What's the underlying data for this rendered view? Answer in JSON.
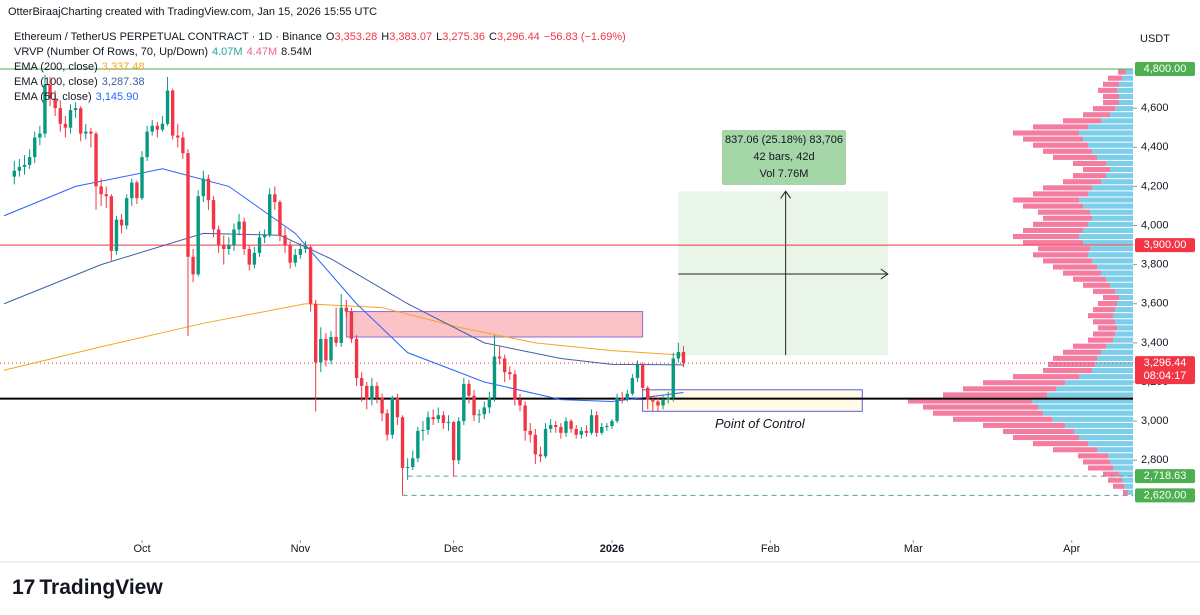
{
  "chart_data": {
    "type": "candlestick",
    "header": "OtterBiraajCharting created with TradingView.com, Jan 15, 2026 15:55 UTC",
    "title": "Ethereum / TetherUS PERPETUAL CONTRACT · 1D · Binance",
    "ohlc_legend": [
      {
        "key": "O",
        "value": "3,353.28"
      },
      {
        "key": "H",
        "value": "3,383.07"
      },
      {
        "key": "L",
        "value": "3,275.36"
      },
      {
        "key": "C",
        "value": "3,296.44"
      }
    ],
    "change": "−56.83 (−1.69%)",
    "vrvp": {
      "name": "VRVP (Number Of Rows, 70, Up/Down)",
      "up": "4.07M",
      "down": "4.47M",
      "total": "8.54M"
    },
    "currency": "USDT",
    "logo": "TradingView",
    "ylim": [
      2392,
      4923
    ],
    "xlim": [
      -119.8,
      102
    ],
    "yticks": [
      {
        "value": 2800,
        "label": "2,800"
      },
      {
        "value": 3000,
        "label": "3,000"
      },
      {
        "value": 3200,
        "label": "3,200"
      },
      {
        "value": 3400,
        "label": "3,400"
      },
      {
        "value": 3600,
        "label": "3,600"
      },
      {
        "value": 3800,
        "label": "3,800"
      },
      {
        "value": 4000,
        "label": "4,000"
      },
      {
        "value": 4200,
        "label": "4,200"
      },
      {
        "value": 4400,
        "label": "4,400"
      },
      {
        "value": 4600,
        "label": "4,600"
      }
    ],
    "xticks": [
      {
        "value": -92,
        "label": "Oct"
      },
      {
        "value": -61,
        "label": "Nov"
      },
      {
        "value": -31,
        "label": "Dec"
      },
      {
        "value": 0,
        "label": "2026"
      },
      {
        "value": 31,
        "label": "Feb"
      },
      {
        "value": 59,
        "label": "Mar"
      },
      {
        "value": 90,
        "label": "Apr"
      }
    ],
    "up_color": "#089981",
    "down_color": "#f23645",
    "x": [
      -117,
      -116,
      -115,
      -114,
      -113,
      -112,
      -111,
      -110,
      -109,
      -108,
      -107,
      -106,
      -105,
      -104,
      -103,
      -102,
      -101,
      -100,
      -99,
      -98,
      -97,
      -96,
      -95,
      -94,
      -93,
      -92,
      -91,
      -90,
      -89,
      -88,
      -87,
      -86,
      -85,
      -84,
      -83,
      -82,
      -81,
      -80,
      -79,
      -78,
      -77,
      -76,
      -75,
      -74,
      -73,
      -72,
      -71,
      -70,
      -69,
      -68,
      -67,
      -66,
      -65,
      -64,
      -63,
      -62,
      -61,
      -60,
      -59,
      -58,
      -57,
      -56,
      -55,
      -54,
      -53,
      -52,
      -51,
      -50,
      -49,
      -48,
      -47,
      -46,
      -45,
      -44,
      -43,
      -42,
      -41,
      -40,
      -39,
      -38,
      -37,
      -36,
      -35,
      -34,
      -33,
      -32,
      -31,
      -30,
      -29,
      -28,
      -27,
      -26,
      -25,
      -24,
      -23,
      -22,
      -21,
      -20,
      -19,
      -18,
      -17,
      -16,
      -15,
      -14,
      -13,
      -12,
      -11,
      -10,
      -9,
      -8,
      -7,
      -6,
      -5,
      -4,
      -3,
      -2,
      -1,
      0,
      1,
      2,
      3,
      4,
      5,
      6,
      7,
      8,
      9,
      10,
      11,
      12,
      13,
      14
    ],
    "candles": [
      [
        4250,
        4330,
        4210,
        4280
      ],
      [
        4280,
        4340,
        4250,
        4300
      ],
      [
        4300,
        4360,
        4260,
        4310
      ],
      [
        4310,
        4390,
        4290,
        4350
      ],
      [
        4350,
        4480,
        4320,
        4450
      ],
      [
        4450,
        4510,
        4410,
        4470
      ],
      [
        4470,
        4770,
        4450,
        4720
      ],
      [
        4720,
        4760,
        4610,
        4650
      ],
      [
        4650,
        4690,
        4560,
        4600
      ],
      [
        4600,
        4640,
        4480,
        4520
      ],
      [
        4520,
        4560,
        4450,
        4500
      ],
      [
        4500,
        4620,
        4470,
        4590
      ],
      [
        4590,
        4630,
        4550,
        4600
      ],
      [
        4600,
        4610,
        4430,
        4470
      ],
      [
        4470,
        4520,
        4440,
        4480
      ],
      [
        4480,
        4500,
        4400,
        4470
      ],
      [
        4470,
        4480,
        4080,
        4200
      ],
      [
        4200,
        4240,
        4100,
        4160
      ],
      [
        4160,
        4200,
        4090,
        4150
      ],
      [
        4150,
        4160,
        3820,
        3870
      ],
      [
        3870,
        4050,
        3850,
        4030
      ],
      [
        4030,
        4060,
        3960,
        4000
      ],
      [
        4000,
        4160,
        3980,
        4140
      ],
      [
        4140,
        4240,
        4100,
        4220
      ],
      [
        4220,
        4230,
        4110,
        4140
      ],
      [
        4140,
        4380,
        4130,
        4350
      ],
      [
        4350,
        4510,
        4330,
        4480
      ],
      [
        4480,
        4540,
        4460,
        4510
      ],
      [
        4510,
        4530,
        4450,
        4490
      ],
      [
        4490,
        4560,
        4480,
        4520
      ],
      [
        4520,
        4760,
        4510,
        4690
      ],
      [
        4690,
        4700,
        4440,
        4460
      ],
      [
        4460,
        4520,
        4400,
        4450
      ],
      [
        4450,
        4480,
        4340,
        4370
      ],
      [
        4370,
        4390,
        3435,
        3840
      ],
      [
        3840,
        3880,
        3710,
        3750
      ],
      [
        3750,
        4180,
        3740,
        4150
      ],
      [
        4150,
        4280,
        4120,
        4240
      ],
      [
        4240,
        4260,
        4080,
        4130
      ],
      [
        4130,
        4150,
        3940,
        3980
      ],
      [
        3980,
        4000,
        3860,
        3900
      ],
      [
        3900,
        3950,
        3800,
        3880
      ],
      [
        3880,
        3940,
        3850,
        3900
      ],
      [
        3900,
        4010,
        3870,
        3980
      ],
      [
        3980,
        4060,
        3950,
        4020
      ],
      [
        4020,
        4040,
        3850,
        3880
      ],
      [
        3880,
        3900,
        3770,
        3800
      ],
      [
        3800,
        3890,
        3780,
        3860
      ],
      [
        3860,
        3970,
        3840,
        3940
      ],
      [
        3940,
        3980,
        3910,
        3950
      ],
      [
        3950,
        4190,
        3940,
        4160
      ],
      [
        4160,
        4200,
        4080,
        4120
      ],
      [
        4120,
        4130,
        3920,
        3950
      ],
      [
        3950,
        3990,
        3860,
        3900
      ],
      [
        3900,
        3920,
        3780,
        3810
      ],
      [
        3810,
        3880,
        3790,
        3850
      ],
      [
        3850,
        3910,
        3830,
        3880
      ],
      [
        3880,
        3920,
        3860,
        3890
      ],
      [
        3890,
        3900,
        3560,
        3600
      ],
      [
        3600,
        3620,
        3050,
        3300
      ],
      [
        3300,
        3480,
        3250,
        3420
      ],
      [
        3420,
        3450,
        3280,
        3310
      ],
      [
        3310,
        3460,
        3290,
        3430
      ],
      [
        3430,
        3580,
        3380,
        3400
      ],
      [
        3400,
        3650,
        3380,
        3580
      ],
      [
        3580,
        3620,
        3530,
        3560
      ],
      [
        3560,
        3580,
        3400,
        3420
      ],
      [
        3420,
        3440,
        3180,
        3220
      ],
      [
        3220,
        3250,
        3100,
        3180
      ],
      [
        3180,
        3200,
        3060,
        3110
      ],
      [
        3110,
        3220,
        3080,
        3180
      ],
      [
        3180,
        3200,
        3090,
        3120
      ],
      [
        3120,
        3140,
        3000,
        3040
      ],
      [
        3040,
        3060,
        2900,
        2930
      ],
      [
        2930,
        3130,
        2910,
        3120
      ],
      [
        3120,
        3140,
        2980,
        3020
      ],
      [
        3020,
        3030,
        2620,
        2760
      ],
      [
        2760,
        2810,
        2700,
        2765
      ],
      [
        2765,
        2850,
        2750,
        2810
      ],
      [
        2810,
        2970,
        2790,
        2950
      ],
      [
        2950,
        3000,
        2900,
        2955
      ],
      [
        2955,
        3050,
        2930,
        3020
      ],
      [
        3020,
        3060,
        2980,
        3010
      ],
      [
        3010,
        3070,
        2990,
        3030
      ],
      [
        3030,
        3050,
        2960,
        2990
      ],
      [
        2990,
        3030,
        2950,
        2995
      ],
      [
        2995,
        3000,
        2718.63,
        2800
      ],
      [
        2800,
        3020,
        2780,
        3000
      ],
      [
        3000,
        3220,
        2980,
        3190
      ],
      [
        3190,
        3210,
        3090,
        3130
      ],
      [
        3130,
        3160,
        3000,
        3030
      ],
      [
        3030,
        3060,
        2990,
        3035
      ],
      [
        3035,
        3100,
        3010,
        3070
      ],
      [
        3070,
        3150,
        3040,
        3120
      ],
      [
        3120,
        3440,
        3100,
        3330
      ],
      [
        3330,
        3380,
        3290,
        3320
      ],
      [
        3320,
        3340,
        3200,
        3250
      ],
      [
        3250,
        3280,
        3210,
        3240
      ],
      [
        3240,
        3260,
        3080,
        3110
      ],
      [
        3110,
        3140,
        3050,
        3080
      ],
      [
        3080,
        3100,
        2900,
        2950
      ],
      [
        2950,
        2990,
        2890,
        2930
      ],
      [
        2930,
        2960,
        2780,
        2830
      ],
      [
        2830,
        2870,
        2790,
        2820
      ],
      [
        2820,
        2990,
        2810,
        2960
      ],
      [
        2960,
        3010,
        2940,
        2980
      ],
      [
        2980,
        3000,
        2940,
        2970
      ],
      [
        2970,
        2990,
        2910,
        2940
      ],
      [
        2940,
        3020,
        2920,
        3000
      ],
      [
        3000,
        3010,
        2940,
        2960
      ],
      [
        2960,
        2980,
        2910,
        2930
      ],
      [
        2930,
        2970,
        2910,
        2950
      ],
      [
        2950,
        2980,
        2920,
        2940
      ],
      [
        2940,
        3060,
        2930,
        3030
      ],
      [
        3030,
        3050,
        2920,
        2940
      ],
      [
        2940,
        2990,
        2930,
        2970
      ],
      [
        2970,
        2990,
        2950,
        2975
      ],
      [
        2975,
        3010,
        2960,
        3000
      ],
      [
        3000,
        3140,
        2990,
        3120
      ],
      [
        3120,
        3150,
        3090,
        3110
      ],
      [
        3110,
        3160,
        3100,
        3140
      ],
      [
        3140,
        3240,
        3130,
        3220
      ],
      [
        3220,
        3310,
        3200,
        3290
      ],
      [
        3290,
        3300,
        3150,
        3170
      ],
      [
        3170,
        3180,
        3060,
        3110
      ],
      [
        3110,
        3130,
        3050,
        3100
      ],
      [
        3100,
        3120,
        3050,
        3080
      ],
      [
        3080,
        3130,
        3060,
        3110
      ],
      [
        3110,
        3150,
        3090,
        3120
      ],
      [
        3120,
        3350,
        3100,
        3320
      ],
      [
        3320,
        3400,
        3300,
        3353.28
      ],
      [
        3353.28,
        3383.07,
        3275.36,
        3296.44
      ]
    ],
    "series": [
      {
        "name": "EMA (200, close)",
        "value_label": "3,337.48",
        "color": "#f5a623",
        "x": [
          -119,
          -100,
          -80,
          -60,
          -45,
          -30,
          -15,
          0,
          14
        ],
        "values": [
          3260,
          3380,
          3500,
          3600,
          3580,
          3480,
          3400,
          3360,
          3337.48
        ]
      },
      {
        "name": "EMA (100, close)",
        "value_label": "3,287.38",
        "color": "#3f5fa8",
        "x": [
          -119,
          -100,
          -80,
          -65,
          -55,
          -40,
          -25,
          -10,
          0,
          14
        ],
        "values": [
          3600,
          3800,
          3960,
          3950,
          3830,
          3600,
          3400,
          3320,
          3290,
          3287.38
        ]
      },
      {
        "name": "EMA (50, close)",
        "value_label": "3,145.90",
        "color": "#2962ff",
        "x": [
          -119,
          -105,
          -88,
          -75,
          -62,
          -50,
          -40,
          -25,
          -10,
          0,
          14
        ],
        "values": [
          4050,
          4200,
          4290,
          4200,
          3960,
          3600,
          3350,
          3200,
          3110,
          3100,
          3145.9
        ]
      }
    ],
    "levels": [
      {
        "value": 4800,
        "color": "#4caf50",
        "style": "solid"
      },
      {
        "value": 3900,
        "color": "#f23645",
        "style": "solid"
      },
      {
        "value": 3115,
        "color": "#000000",
        "style": "thick"
      },
      {
        "value": 3296.44,
        "color": "#f23645",
        "style": "dotted"
      },
      {
        "value": 2718.63,
        "color": "#5b9c9c",
        "style": "dashed",
        "from": -40
      },
      {
        "value": 2620,
        "color": "#5b9c9c",
        "style": "dashed",
        "from": -41
      }
    ],
    "price_labels": [
      {
        "value": 4800,
        "label": "4,800.00",
        "color": "#4caf50"
      },
      {
        "value": 3900,
        "label": "3,900.00",
        "color": "#f23645"
      },
      {
        "value": 3296.44,
        "label": "3,296.44",
        "sub": "08:04:17",
        "color": "#f23645"
      },
      {
        "value": 2718.63,
        "label": "2,718.63",
        "color": "#4caf50"
      },
      {
        "value": 2620,
        "label": "2,620.00",
        "color": "#4caf50"
      }
    ],
    "zones": [
      {
        "x": [
          -52,
          6
        ],
        "y": [
          3430,
          3560
        ],
        "fill": "rgba(242,54,69,0.3)",
        "stroke": "#8e6bd0"
      },
      {
        "x": [
          6,
          49
        ],
        "y": [
          3050,
          3160
        ],
        "fill": "rgba(255,235,120,0.18)",
        "stroke": "#5c5ce0"
      }
    ],
    "measure": {
      "x": [
        13,
        54
      ],
      "y": [
        3337,
        4175
      ],
      "arrow_x": 34,
      "cross_y": 3752,
      "lines": [
        "837.06 (25.18%) 83,706",
        "42 bars, 42d",
        "Vol 7.76M"
      ]
    },
    "annotation": "Point of Control",
    "volume_profile": {
      "lim": [
        2620,
        4800
      ],
      "up_color": "rgba(80,190,225,0.75)",
      "down_color": "rgba(240,80,130,0.75)",
      "up": [
        5,
        9,
        11,
        14,
        20,
        23,
        25,
        36,
        45,
        54,
        59,
        68,
        81,
        90,
        95,
        101,
        86,
        77,
        68,
        54,
        41,
        38,
        36,
        32,
        27,
        20,
        18,
        16,
        18,
        20,
        18,
        16,
        14,
        18,
        23,
        27,
        32,
        36,
        41,
        45,
        43,
        50,
        54,
        50,
        45,
        41,
        43,
        50,
        54,
        45,
        41,
        32,
        27,
        23,
        27,
        36,
        41,
        45,
        50,
        54,
        45,
        32,
        23,
        18,
        14,
        14,
        16,
        14,
        11,
        7
      ],
      "down": [
        5,
        11,
        14,
        16,
        25,
        27,
        30,
        44,
        55,
        66,
        71,
        82,
        99,
        110,
        115,
        124,
        104,
        93,
        82,
        66,
        49,
        47,
        44,
        38,
        33,
        25,
        22,
        19,
        22,
        25,
        22,
        19,
        16,
        22,
        27,
        33,
        38,
        44,
        49,
        55,
        52,
        60,
        66,
        60,
        55,
        49,
        52,
        60,
        66,
        55,
        49,
        38,
        33,
        27,
        33,
        44,
        49,
        55,
        60,
        66,
        55,
        38,
        27,
        22,
        16,
        16,
        19,
        16,
        14,
        8
      ]
    }
  }
}
